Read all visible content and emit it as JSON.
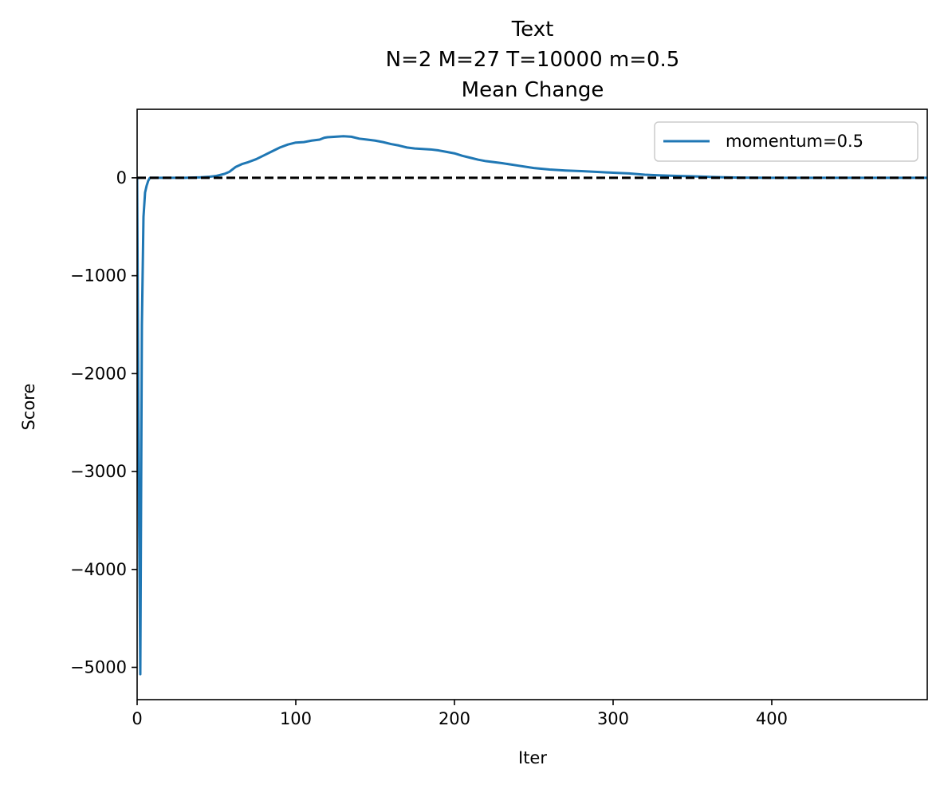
{
  "chart_data": {
    "type": "line",
    "title_lines": [
      "Text",
      "N=2 M=27 T=10000 m=0.5",
      "Mean Change"
    ],
    "xlabel": "Iter",
    "ylabel": "Score",
    "xlim": [
      0,
      498
    ],
    "ylim": [
      -5330,
      700
    ],
    "xticks": [
      0,
      100,
      200,
      300,
      400
    ],
    "yticks": [
      0,
      -1000,
      -2000,
      -3000,
      -4000,
      -5000
    ],
    "ytick_labels": [
      "0",
      "−1000",
      "−2000",
      "−3000",
      "−4000",
      "−5000"
    ],
    "grid": false,
    "legend": {
      "placement": "top-right",
      "entries": [
        "momentum=0.5"
      ]
    },
    "reference_line": {
      "y": 0,
      "style": "dashed",
      "color": "#000000"
    },
    "series": [
      {
        "name": "momentum=0.5",
        "color": "#1f77b4",
        "x": [
          0,
          1,
          2,
          3,
          4,
          5,
          6,
          7,
          8,
          10,
          20,
          30,
          40,
          45,
          50,
          55,
          58,
          62,
          66,
          70,
          75,
          80,
          85,
          90,
          95,
          100,
          105,
          110,
          115,
          118,
          120,
          125,
          130,
          135,
          140,
          145,
          150,
          155,
          160,
          165,
          170,
          175,
          180,
          185,
          190,
          195,
          200,
          205,
          210,
          215,
          220,
          230,
          240,
          250,
          260,
          270,
          280,
          290,
          300,
          310,
          320,
          330,
          340,
          350,
          360,
          370,
          380,
          400,
          450,
          498
        ],
        "y": [
          0,
          -3000,
          -5070,
          -1500,
          -400,
          -150,
          -80,
          -30,
          0,
          0,
          0,
          0,
          5,
          10,
          20,
          40,
          60,
          110,
          140,
          160,
          190,
          230,
          270,
          310,
          340,
          360,
          365,
          380,
          390,
          410,
          415,
          420,
          425,
          420,
          400,
          390,
          380,
          365,
          345,
          330,
          310,
          300,
          295,
          290,
          280,
          265,
          250,
          225,
          205,
          185,
          170,
          150,
          125,
          100,
          85,
          75,
          68,
          60,
          52,
          45,
          32,
          25,
          20,
          15,
          10,
          5,
          2,
          0,
          0,
          0
        ]
      }
    ]
  }
}
